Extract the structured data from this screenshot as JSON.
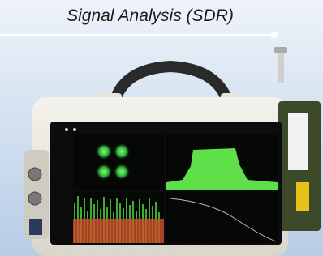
{
  "header": {
    "title": "Signal Analysis (SDR)"
  }
}
